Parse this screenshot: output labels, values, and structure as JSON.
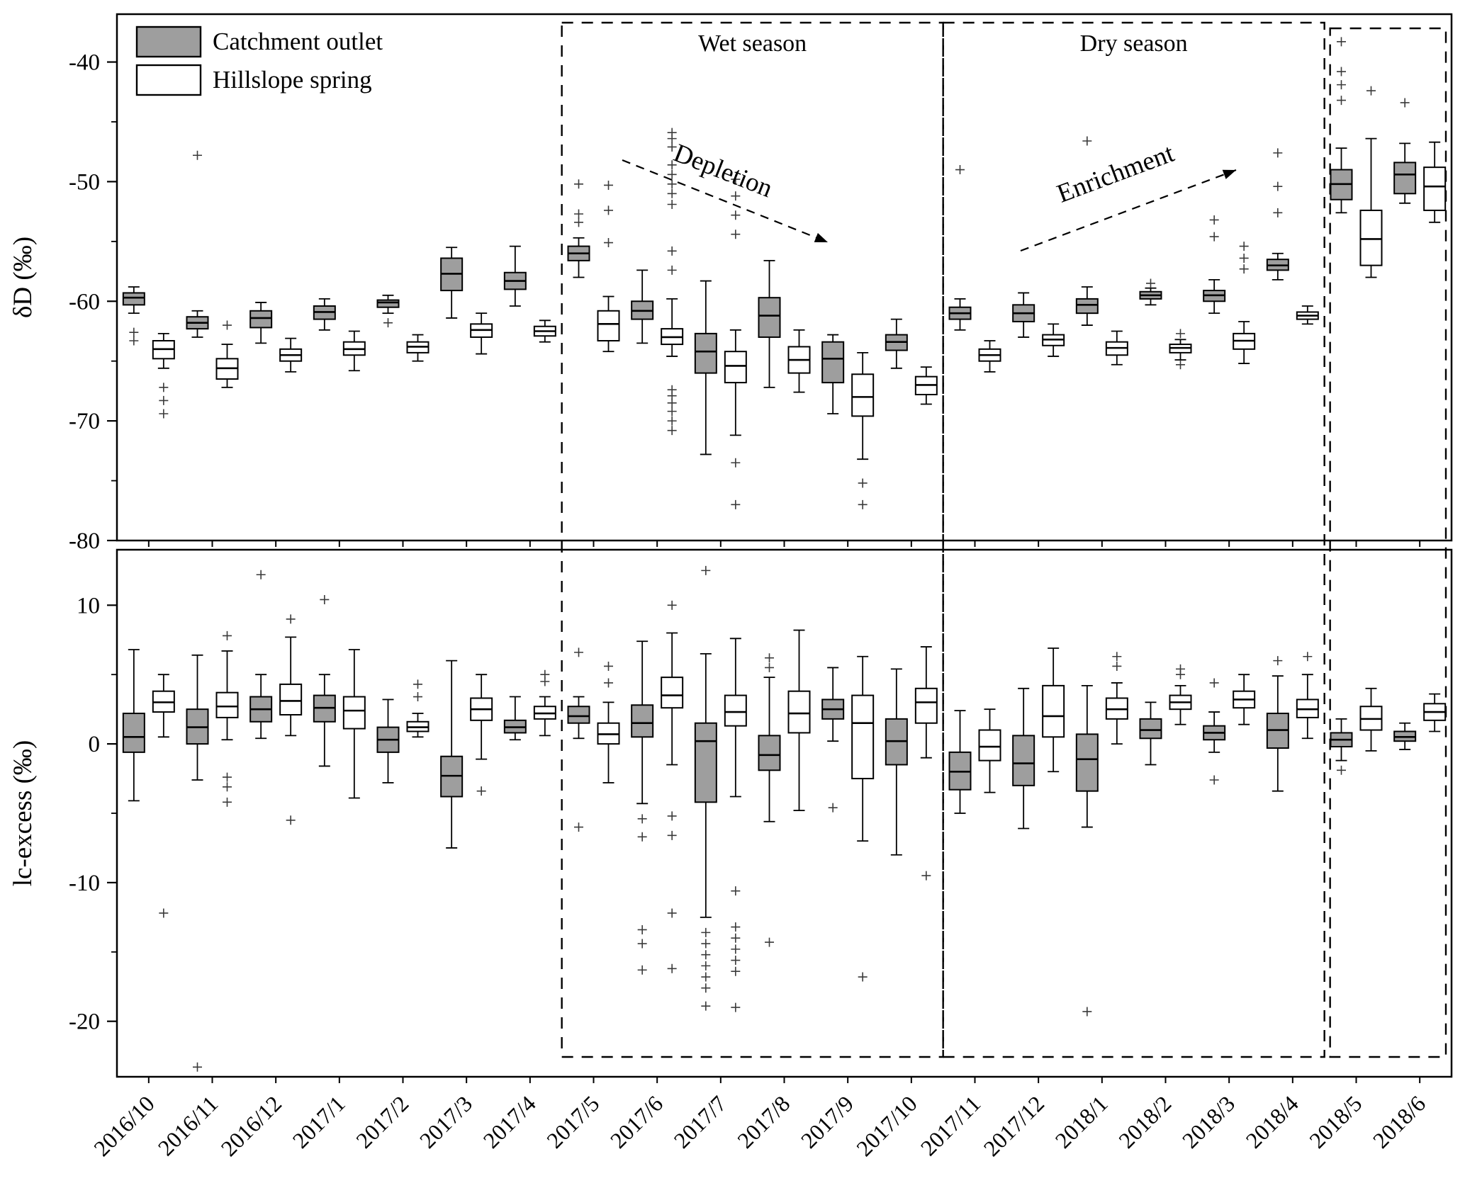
{
  "figure": {
    "legend": [
      {
        "label": "Catchment outlet",
        "fill": "#9e9e9e"
      },
      {
        "label": "Hillslope spring",
        "fill": "#ffffff"
      }
    ],
    "trends": [
      {
        "label": "Depletion",
        "direction": "down-right"
      },
      {
        "label": "Enrichment",
        "direction": "up-right"
      }
    ]
  },
  "seasons": [
    {
      "label": "Wet season",
      "from": "2017/5",
      "to": "2017/10"
    },
    {
      "label": "Dry season",
      "from": "2017/11",
      "to": "2018/4"
    },
    {
      "label": "",
      "from": "2018/5",
      "to": "2018/6"
    }
  ],
  "chart_data": [
    {
      "type": "box",
      "panel": "top",
      "ylabel": "δD (‰)",
      "ylim": [
        -80,
        -36
      ],
      "yticks": [
        -40,
        -50,
        -60,
        -70,
        -80
      ],
      "yticks_minor": [
        -45,
        -55,
        -65,
        -75
      ],
      "categories": [
        "2016/10",
        "2016/11",
        "2016/12",
        "2017/1",
        "2017/2",
        "2017/3",
        "2017/4",
        "2017/5",
        "2017/6",
        "2017/7",
        "2017/8",
        "2017/9",
        "2017/10",
        "2017/11",
        "2017/12",
        "2018/1",
        "2018/2",
        "2018/3",
        "2018/4",
        "2018/5",
        "2018/6"
      ],
      "series": [
        {
          "name": "Catchment outlet",
          "fill": "#9e9e9e",
          "boxes": [
            [
              -61.0,
              -60.3,
              -59.7,
              -59.3,
              -58.8
            ],
            [
              -63.0,
              -62.3,
              -61.8,
              -61.3,
              -60.8
            ],
            [
              -63.5,
              -62.2,
              -61.4,
              -60.8,
              -60.1
            ],
            [
              -62.4,
              -61.5,
              -60.9,
              -60.4,
              -59.8
            ],
            [
              -61.0,
              -60.5,
              -60.1,
              -59.9,
              -59.5
            ],
            [
              -61.4,
              -59.1,
              -57.7,
              -56.4,
              -55.5
            ],
            [
              -60.4,
              -59.0,
              -58.3,
              -57.6,
              -55.4
            ],
            [
              -58.0,
              -56.6,
              -56.0,
              -55.4,
              -54.7
            ],
            [
              -63.5,
              -61.5,
              -60.8,
              -60.0,
              -57.4
            ],
            [
              -72.8,
              -66.0,
              -64.2,
              -62.7,
              -58.3
            ],
            [
              -67.2,
              -63.0,
              -61.2,
              -59.7,
              -56.6
            ],
            [
              -69.4,
              -66.8,
              -64.8,
              -63.4,
              -62.8
            ],
            [
              -65.6,
              -64.1,
              -63.4,
              -62.8,
              -61.5
            ],
            [
              -62.4,
              -61.5,
              -61.0,
              -60.5,
              -59.8
            ],
            [
              -63.0,
              -61.7,
              -61.0,
              -60.3,
              -59.3
            ],
            [
              -62.0,
              -61.0,
              -60.3,
              -59.8,
              -58.8
            ],
            [
              -60.3,
              -59.8,
              -59.5,
              -59.2,
              -58.9
            ],
            [
              -61.0,
              -60.0,
              -59.5,
              -59.1,
              -58.2
            ],
            [
              -58.2,
              -57.4,
              -57.0,
              -56.5,
              -56.0
            ],
            [
              -52.6,
              -51.5,
              -50.2,
              -49.0,
              -47.2
            ],
            [
              -51.8,
              -51.0,
              -49.4,
              -48.4,
              -46.8
            ]
          ],
          "outliers": [
            [
              -62.6,
              -63.3
            ],
            [
              -47.8
            ],
            [],
            [],
            [
              -61.8
            ],
            [],
            [],
            [
              -50.2,
              -52.7,
              -53.4
            ],
            [],
            [],
            [],
            [],
            [],
            [
              -49.0
            ],
            [],
            [
              -46.6
            ],
            [
              -58.5
            ],
            [
              -53.2,
              -54.6
            ],
            [
              -47.6,
              -50.4,
              -52.6
            ],
            [
              -38.3,
              -40.8,
              -41.9,
              -43.2
            ],
            [
              -43.4
            ]
          ]
        },
        {
          "name": "Hillslope spring",
          "fill": "#ffffff",
          "boxes": [
            [
              -65.6,
              -64.8,
              -64.0,
              -63.3,
              -62.7
            ],
            [
              -67.2,
              -66.5,
              -65.6,
              -64.8,
              -63.6
            ],
            [
              -65.9,
              -65.0,
              -64.5,
              -64.0,
              -63.1
            ],
            [
              -65.8,
              -64.5,
              -64.0,
              -63.4,
              -62.5
            ],
            [
              -65.0,
              -64.3,
              -63.8,
              -63.4,
              -62.8
            ],
            [
              -64.4,
              -63.0,
              -62.4,
              -61.9,
              -61.0
            ],
            [
              -63.4,
              -62.9,
              -62.5,
              -62.1,
              -61.6
            ],
            [
              -64.2,
              -63.3,
              -61.9,
              -60.8,
              -59.6
            ],
            [
              -64.6,
              -63.6,
              -63.0,
              -62.3,
              -59.8
            ],
            [
              -71.2,
              -66.8,
              -65.4,
              -64.2,
              -62.4
            ],
            [
              -67.6,
              -66.0,
              -64.9,
              -63.8,
              -62.4
            ],
            [
              -73.2,
              -69.6,
              -68.0,
              -66.1,
              -64.3
            ],
            [
              -68.6,
              -67.8,
              -67.0,
              -66.3,
              -65.5
            ],
            [
              -65.9,
              -65.0,
              -64.5,
              -64.0,
              -63.3
            ],
            [
              -64.6,
              -63.7,
              -63.2,
              -62.8,
              -61.9
            ],
            [
              -65.3,
              -64.5,
              -63.9,
              -63.4,
              -62.5
            ],
            [
              -64.9,
              -64.3,
              -63.9,
              -63.6,
              -63.2
            ],
            [
              -65.2,
              -64.0,
              -63.3,
              -62.7,
              -61.7
            ],
            [
              -61.9,
              -61.5,
              -61.2,
              -60.9,
              -60.4
            ],
            [
              -58.0,
              -57.0,
              -54.8,
              -52.4,
              -46.4
            ],
            [
              -53.4,
              -52.4,
              -50.4,
              -48.8,
              -46.7
            ]
          ],
          "outliers": [
            [
              -67.2,
              -68.3,
              -69.4
            ],
            [
              -62.0
            ],
            [],
            [],
            [],
            [],
            [],
            [
              -50.3,
              -52.4,
              -55.1
            ],
            [
              -45.9,
              -46.4,
              -47.1,
              -48.6,
              -49.4,
              -50.2,
              -51.0,
              -51.9,
              -55.8,
              -57.4,
              -67.4,
              -67.9,
              -68.5,
              -69.2,
              -70.0,
              -70.8
            ],
            [
              -73.5,
              -77.0,
              -49.8,
              -51.2,
              -52.8,
              -54.4
            ],
            [],
            [
              -75.2,
              -77.0
            ],
            [],
            [],
            [],
            [],
            [
              -62.7,
              -65.3
            ],
            [
              -55.4,
              -56.4,
              -57.3
            ],
            [],
            [
              -42.4
            ],
            []
          ]
        }
      ]
    },
    {
      "type": "box",
      "panel": "bottom",
      "ylabel": "lc-excess (‰)",
      "ylim": [
        -24,
        14
      ],
      "yticks": [
        10,
        0,
        -10,
        -20
      ],
      "yticks_minor": [
        5,
        -5,
        -15
      ],
      "categories": [
        "2016/10",
        "2016/11",
        "2016/12",
        "2017/1",
        "2017/2",
        "2017/3",
        "2017/4",
        "2017/5",
        "2017/6",
        "2017/7",
        "2017/8",
        "2017/9",
        "2017/10",
        "2017/11",
        "2017/12",
        "2018/1",
        "2018/2",
        "2018/3",
        "2018/4",
        "2018/5",
        "2018/6"
      ],
      "series": [
        {
          "name": "Catchment outlet",
          "fill": "#9e9e9e",
          "boxes": [
            [
              -4.1,
              -0.6,
              0.5,
              2.2,
              6.8
            ],
            [
              -2.6,
              0.0,
              1.2,
              2.5,
              6.4
            ],
            [
              0.4,
              1.6,
              2.5,
              3.4,
              5.0
            ],
            [
              -1.6,
              1.6,
              2.6,
              3.5,
              5.0
            ],
            [
              -2.8,
              -0.6,
              0.3,
              1.2,
              3.2
            ],
            [
              -7.5,
              -3.8,
              -2.3,
              -0.9,
              6.0
            ],
            [
              0.3,
              0.8,
              1.2,
              1.7,
              3.4
            ],
            [
              0.4,
              1.5,
              2.0,
              2.7,
              3.4
            ],
            [
              -4.3,
              0.5,
              1.5,
              2.8,
              7.4
            ],
            [
              -12.5,
              -4.2,
              0.2,
              1.5,
              6.5
            ],
            [
              -5.6,
              -1.9,
              -0.8,
              0.6,
              4.8
            ],
            [
              0.2,
              1.8,
              2.5,
              3.2,
              5.5
            ],
            [
              -8.0,
              -1.5,
              0.2,
              1.8,
              5.4
            ],
            [
              -5.0,
              -3.3,
              -2.0,
              -0.6,
              2.4
            ],
            [
              -6.1,
              -3.0,
              -1.4,
              0.6,
              4.0
            ],
            [
              -6.0,
              -3.4,
              -1.1,
              0.7,
              4.2
            ],
            [
              -1.5,
              0.4,
              1.0,
              1.8,
              3.0
            ],
            [
              -0.6,
              0.3,
              0.8,
              1.3,
              2.3
            ],
            [
              -3.4,
              -0.3,
              1.0,
              2.2,
              4.9
            ],
            [
              -1.2,
              -0.2,
              0.3,
              0.8,
              1.8
            ],
            [
              -0.4,
              0.2,
              0.5,
              0.9,
              1.5
            ]
          ],
          "outliers": [
            [],
            [
              -23.3
            ],
            [
              12.2
            ],
            [
              10.4
            ],
            [],
            [],
            [],
            [
              6.6,
              -6.0
            ],
            [
              -5.4,
              -6.7,
              -13.4,
              -14.4,
              -16.3
            ],
            [
              12.5,
              -13.6,
              -14.4,
              -15.2,
              -16.0,
              -16.8,
              -17.6,
              -18.9
            ],
            [
              5.5,
              6.2,
              -14.3
            ],
            [
              -4.6
            ],
            [],
            [],
            [],
            [
              -19.3
            ],
            [],
            [
              4.4,
              -2.6
            ],
            [
              6.0
            ],
            [
              -1.9
            ],
            []
          ]
        },
        {
          "name": "Hillslope spring",
          "fill": "#ffffff",
          "boxes": [
            [
              0.5,
              2.3,
              3.0,
              3.8,
              5.0
            ],
            [
              0.3,
              1.9,
              2.7,
              3.7,
              6.7
            ],
            [
              0.6,
              2.1,
              3.1,
              4.3,
              7.7
            ],
            [
              -3.9,
              1.1,
              2.4,
              3.4,
              6.8
            ],
            [
              0.5,
              0.9,
              1.2,
              1.6,
              2.2
            ],
            [
              -1.1,
              1.7,
              2.5,
              3.3,
              5.0
            ],
            [
              0.6,
              1.8,
              2.2,
              2.7,
              3.4
            ],
            [
              -2.8,
              0.0,
              0.7,
              1.5,
              3.0
            ],
            [
              -1.5,
              2.6,
              3.5,
              4.8,
              8.0
            ],
            [
              -3.8,
              1.3,
              2.3,
              3.5,
              7.6
            ],
            [
              -4.8,
              0.8,
              2.2,
              3.8,
              8.2
            ],
            [
              -7.0,
              -2.5,
              1.5,
              3.5,
              6.3
            ],
            [
              -1.0,
              1.5,
              3.0,
              4.0,
              7.0
            ],
            [
              -3.5,
              -1.2,
              -0.2,
              1.0,
              2.5
            ],
            [
              -2.0,
              0.5,
              2.0,
              4.2,
              6.9
            ],
            [
              0.0,
              1.8,
              2.5,
              3.3,
              4.4
            ],
            [
              1.4,
              2.5,
              3.0,
              3.5,
              4.2
            ],
            [
              1.4,
              2.6,
              3.2,
              3.8,
              5.0
            ],
            [
              0.4,
              1.9,
              2.5,
              3.2,
              5.0
            ],
            [
              -0.5,
              1.0,
              1.8,
              2.7,
              4.0
            ],
            [
              0.9,
              1.7,
              2.3,
              2.9,
              3.6
            ]
          ],
          "outliers": [
            [
              -12.2
            ],
            [
              7.8,
              -2.4,
              -3.1,
              -4.2
            ],
            [
              9.0,
              -5.5
            ],
            [],
            [
              3.4,
              4.3
            ],
            [
              -3.4
            ],
            [
              4.5,
              5.0
            ],
            [
              4.4,
              5.6
            ],
            [
              10.0,
              -5.2,
              -6.6,
              -12.2,
              -16.2
            ],
            [
              -10.6,
              -13.2,
              -14.0,
              -14.8,
              -15.6,
              -16.4,
              -19.0
            ],
            [],
            [
              -16.8
            ],
            [
              -9.5
            ],
            [],
            [],
            [
              5.6,
              6.3
            ],
            [
              5.0,
              5.4
            ],
            [],
            [
              6.3
            ],
            [],
            []
          ]
        }
      ]
    }
  ]
}
